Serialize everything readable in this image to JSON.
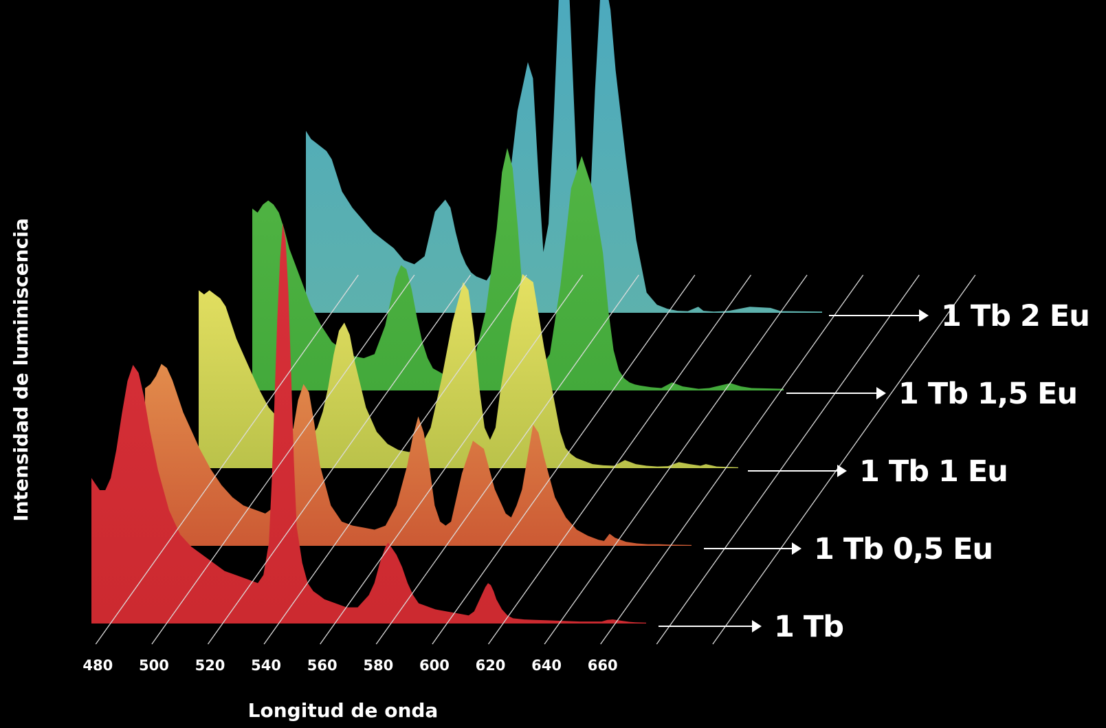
{
  "chart_data": {
    "type": "area",
    "subtype": "3d-waterfall",
    "xlabel": "Longitud de onda",
    "ylabel": "Intensidad de luminiscencia",
    "x_ticks": [
      480,
      500,
      520,
      540,
      560,
      580,
      600,
      620,
      640,
      660
    ],
    "xlim": [
      476,
      676
    ],
    "grid": true,
    "series": [
      {
        "name": "1 Tb",
        "color_top": "#d8303a",
        "color_bottom": "#cc2a30",
        "x": [
          476,
          477,
          479,
          481,
          483,
          485,
          487,
          489,
          491,
          493,
          495,
          497,
          500,
          504,
          508,
          512,
          516,
          520,
          524,
          528,
          532,
          536,
          538,
          540,
          541,
          542,
          543,
          544,
          545,
          546,
          547,
          548,
          549,
          550,
          552,
          554,
          556,
          558,
          560,
          564,
          568,
          572,
          576,
          578,
          580,
          582,
          583,
          584,
          586,
          588,
          590,
          592,
          594,
          596,
          598,
          600,
          604,
          608,
          612,
          614,
          616,
          618,
          619,
          620,
          621,
          622,
          624,
          626,
          628,
          632,
          636,
          640,
          644,
          648,
          652,
          656,
          660,
          662,
          664,
          666,
          668,
          670,
          672,
          676
        ],
        "y": [
          0.36,
          0.35,
          0.33,
          0.33,
          0.36,
          0.43,
          0.52,
          0.6,
          0.64,
          0.62,
          0.56,
          0.48,
          0.38,
          0.28,
          0.22,
          0.19,
          0.17,
          0.15,
          0.13,
          0.12,
          0.11,
          0.1,
          0.12,
          0.2,
          0.35,
          0.55,
          0.75,
          0.9,
          0.99,
          0.95,
          0.82,
          0.62,
          0.4,
          0.24,
          0.15,
          0.1,
          0.08,
          0.07,
          0.06,
          0.05,
          0.04,
          0.04,
          0.07,
          0.1,
          0.15,
          0.19,
          0.2,
          0.19,
          0.17,
          0.14,
          0.1,
          0.07,
          0.05,
          0.045,
          0.04,
          0.035,
          0.03,
          0.025,
          0.02,
          0.03,
          0.06,
          0.09,
          0.1,
          0.095,
          0.08,
          0.06,
          0.035,
          0.02,
          0.013,
          0.01,
          0.009,
          0.008,
          0.007,
          0.006,
          0.005,
          0.005,
          0.005,
          0.009,
          0.01,
          0.008,
          0.006,
          0.004,
          0.003,
          0.002
        ]
      },
      {
        "name": "1 Tb 0,5 Eu",
        "color_top": "#e28c4c",
        "color_bottom": "#cc5a34",
        "x": [
          476,
          478,
          480,
          482,
          484,
          486,
          488,
          490,
          492,
          496,
          500,
          504,
          508,
          512,
          516,
          520,
          524,
          526,
          528,
          530,
          532,
          534,
          536,
          538,
          540,
          544,
          548,
          552,
          556,
          560,
          564,
          568,
          572,
          574,
          576,
          578,
          580,
          582,
          584,
          586,
          588,
          592,
          596,
          600,
          604,
          608,
          610,
          612,
          614,
          616,
          618,
          620,
          622,
          626,
          630,
          634,
          638,
          642,
          644,
          646,
          648,
          652,
          656,
          660,
          664,
          668,
          676
        ],
        "y": [
          0.39,
          0.4,
          0.42,
          0.45,
          0.44,
          0.41,
          0.37,
          0.33,
          0.3,
          0.24,
          0.19,
          0.15,
          0.12,
          0.1,
          0.09,
          0.08,
          0.1,
          0.14,
          0.2,
          0.28,
          0.36,
          0.4,
          0.38,
          0.3,
          0.2,
          0.1,
          0.06,
          0.05,
          0.045,
          0.04,
          0.05,
          0.1,
          0.2,
          0.27,
          0.32,
          0.28,
          0.2,
          0.1,
          0.06,
          0.05,
          0.06,
          0.18,
          0.26,
          0.24,
          0.14,
          0.08,
          0.07,
          0.1,
          0.14,
          0.22,
          0.3,
          0.28,
          0.22,
          0.12,
          0.07,
          0.04,
          0.025,
          0.015,
          0.012,
          0.03,
          0.02,
          0.01,
          0.006,
          0.004,
          0.004,
          0.003,
          0.002
        ]
      },
      {
        "name": "1 Tb 1 Eu",
        "color_top": "#e5e162",
        "color_bottom": "#bac24a",
        "x": [
          476,
          478,
          480,
          482,
          484,
          486,
          488,
          490,
          494,
          498,
          502,
          506,
          510,
          514,
          518,
          520,
          522,
          524,
          526,
          528,
          530,
          532,
          534,
          538,
          542,
          546,
          550,
          554,
          558,
          562,
          566,
          570,
          574,
          576,
          578,
          580,
          582,
          584,
          586,
          588,
          592,
          596,
          600,
          604,
          608,
          610,
          612,
          614,
          616,
          618,
          620,
          622,
          626,
          630,
          634,
          638,
          642,
          646,
          650,
          654,
          658,
          662,
          664,
          668,
          676
        ],
        "y": [
          0.44,
          0.43,
          0.44,
          0.43,
          0.42,
          0.4,
          0.36,
          0.32,
          0.26,
          0.2,
          0.15,
          0.12,
          0.1,
          0.09,
          0.08,
          0.1,
          0.14,
          0.2,
          0.28,
          0.34,
          0.36,
          0.33,
          0.26,
          0.15,
          0.09,
          0.06,
          0.045,
          0.04,
          0.05,
          0.1,
          0.22,
          0.36,
          0.46,
          0.44,
          0.34,
          0.2,
          0.1,
          0.07,
          0.1,
          0.2,
          0.36,
          0.48,
          0.46,
          0.3,
          0.16,
          0.09,
          0.05,
          0.035,
          0.025,
          0.02,
          0.015,
          0.01,
          0.007,
          0.006,
          0.02,
          0.01,
          0.006,
          0.004,
          0.005,
          0.015,
          0.01,
          0.006,
          0.01,
          0.004,
          0.002
        ]
      },
      {
        "name": "1 Tb 1,5 Eu",
        "color_top": "#52b544",
        "color_bottom": "#43a93b",
        "x": [
          476,
          478,
          480,
          482,
          484,
          486,
          488,
          490,
          494,
          498,
          502,
          506,
          510,
          514,
          518,
          522,
          526,
          528,
          530,
          532,
          534,
          536,
          538,
          540,
          542,
          544,
          548,
          552,
          556,
          560,
          564,
          568,
          570,
          572,
          574,
          576,
          578,
          580,
          582,
          584,
          588,
          592,
          596,
          600,
          604,
          608,
          610,
          612,
          614,
          616,
          618,
          620,
          622,
          626,
          630,
          634,
          638,
          642,
          644,
          648,
          652,
          656,
          660,
          664,
          676
        ],
        "y": [
          0.45,
          0.44,
          0.46,
          0.47,
          0.46,
          0.44,
          0.4,
          0.35,
          0.28,
          0.21,
          0.16,
          0.12,
          0.1,
          0.085,
          0.08,
          0.09,
          0.16,
          0.22,
          0.28,
          0.31,
          0.3,
          0.25,
          0.18,
          0.12,
          0.08,
          0.055,
          0.04,
          0.035,
          0.045,
          0.09,
          0.2,
          0.4,
          0.54,
          0.6,
          0.55,
          0.4,
          0.22,
          0.1,
          0.06,
          0.05,
          0.09,
          0.26,
          0.5,
          0.58,
          0.5,
          0.34,
          0.2,
          0.1,
          0.05,
          0.03,
          0.02,
          0.015,
          0.012,
          0.008,
          0.006,
          0.02,
          0.01,
          0.006,
          0.004,
          0.006,
          0.012,
          0.018,
          0.01,
          0.006,
          0.004
        ]
      },
      {
        "name": "1 Tb 2 Eu",
        "color_top": "#4aa9c0",
        "color_bottom": "#5db1ad",
        "x": [
          476,
          478,
          480,
          482,
          484,
          486,
          488,
          490,
          494,
          498,
          502,
          506,
          510,
          514,
          518,
          522,
          526,
          530,
          532,
          534,
          536,
          538,
          540,
          542,
          546,
          550,
          554,
          558,
          562,
          564,
          566,
          568,
          570,
          572,
          574,
          576,
          578,
          580,
          582,
          584,
          586,
          588,
          590,
          592,
          594,
          596,
          600,
          604,
          608,
          612,
          616,
          620,
          624,
          628,
          630,
          634,
          638,
          640,
          644,
          648,
          656,
          660,
          676
        ],
        "y": [
          0.45,
          0.43,
          0.42,
          0.41,
          0.4,
          0.38,
          0.34,
          0.3,
          0.26,
          0.23,
          0.2,
          0.18,
          0.16,
          0.13,
          0.12,
          0.14,
          0.25,
          0.28,
          0.26,
          0.2,
          0.15,
          0.12,
          0.1,
          0.09,
          0.08,
          0.12,
          0.28,
          0.5,
          0.62,
          0.58,
          0.35,
          0.15,
          0.22,
          0.48,
          0.78,
          0.88,
          0.8,
          0.5,
          0.2,
          0.12,
          0.25,
          0.55,
          0.78,
          0.82,
          0.75,
          0.6,
          0.38,
          0.18,
          0.05,
          0.02,
          0.01,
          0.005,
          0.004,
          0.015,
          0.005,
          0.003,
          0.004,
          0.005,
          0.01,
          0.015,
          0.012,
          0.004,
          0.003
        ]
      }
    ]
  }
}
